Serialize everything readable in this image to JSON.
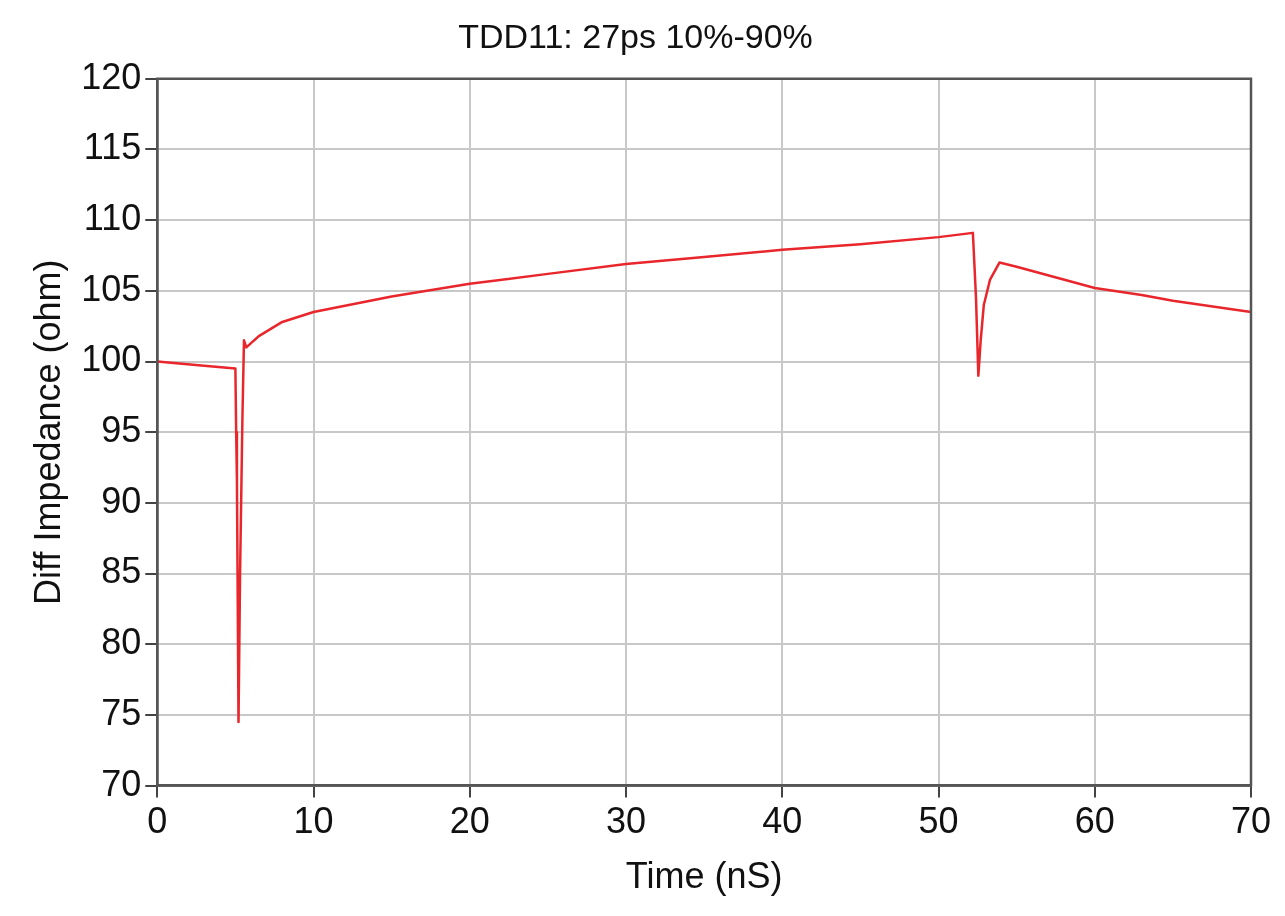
{
  "chart_data": {
    "type": "line",
    "title": "TDD11: 27ps 10%-90%",
    "xlabel": "Time (nS)",
    "ylabel": "Diff Impedance (ohm)",
    "xlim": [
      0,
      70
    ],
    "xticks": [
      0,
      10,
      20,
      30,
      40,
      50,
      60,
      70
    ],
    "ylim": [
      70,
      120
    ],
    "yticks": [
      70,
      75,
      80,
      85,
      90,
      95,
      100,
      105,
      110,
      115,
      120
    ],
    "grid": true,
    "marker": "none",
    "line_style": "solid",
    "series": [
      {
        "color": "#e8262b",
        "x": [
          0,
          3,
          5,
          5.05,
          5.1,
          5.2,
          5.3,
          5.45,
          5.55,
          5.7,
          6.5,
          8,
          10,
          15,
          20,
          25,
          30,
          35,
          40,
          45,
          50,
          52.2,
          52.4,
          52.55,
          52.7,
          52.9,
          53.3,
          53.9,
          55,
          60,
          63,
          65,
          70
        ],
        "values": [
          100,
          99.7,
          99.5,
          95,
          91.5,
          74.5,
          85,
          96,
          101.5,
          101,
          101.8,
          102.8,
          103.5,
          104.6,
          105.5,
          106.2,
          106.9,
          107.4,
          107.9,
          108.3,
          108.8,
          109.1,
          104.5,
          99,
          101.5,
          104,
          105.8,
          107,
          106.7,
          105.2,
          104.7,
          104.3,
          103.5
        ]
      }
    ]
  }
}
